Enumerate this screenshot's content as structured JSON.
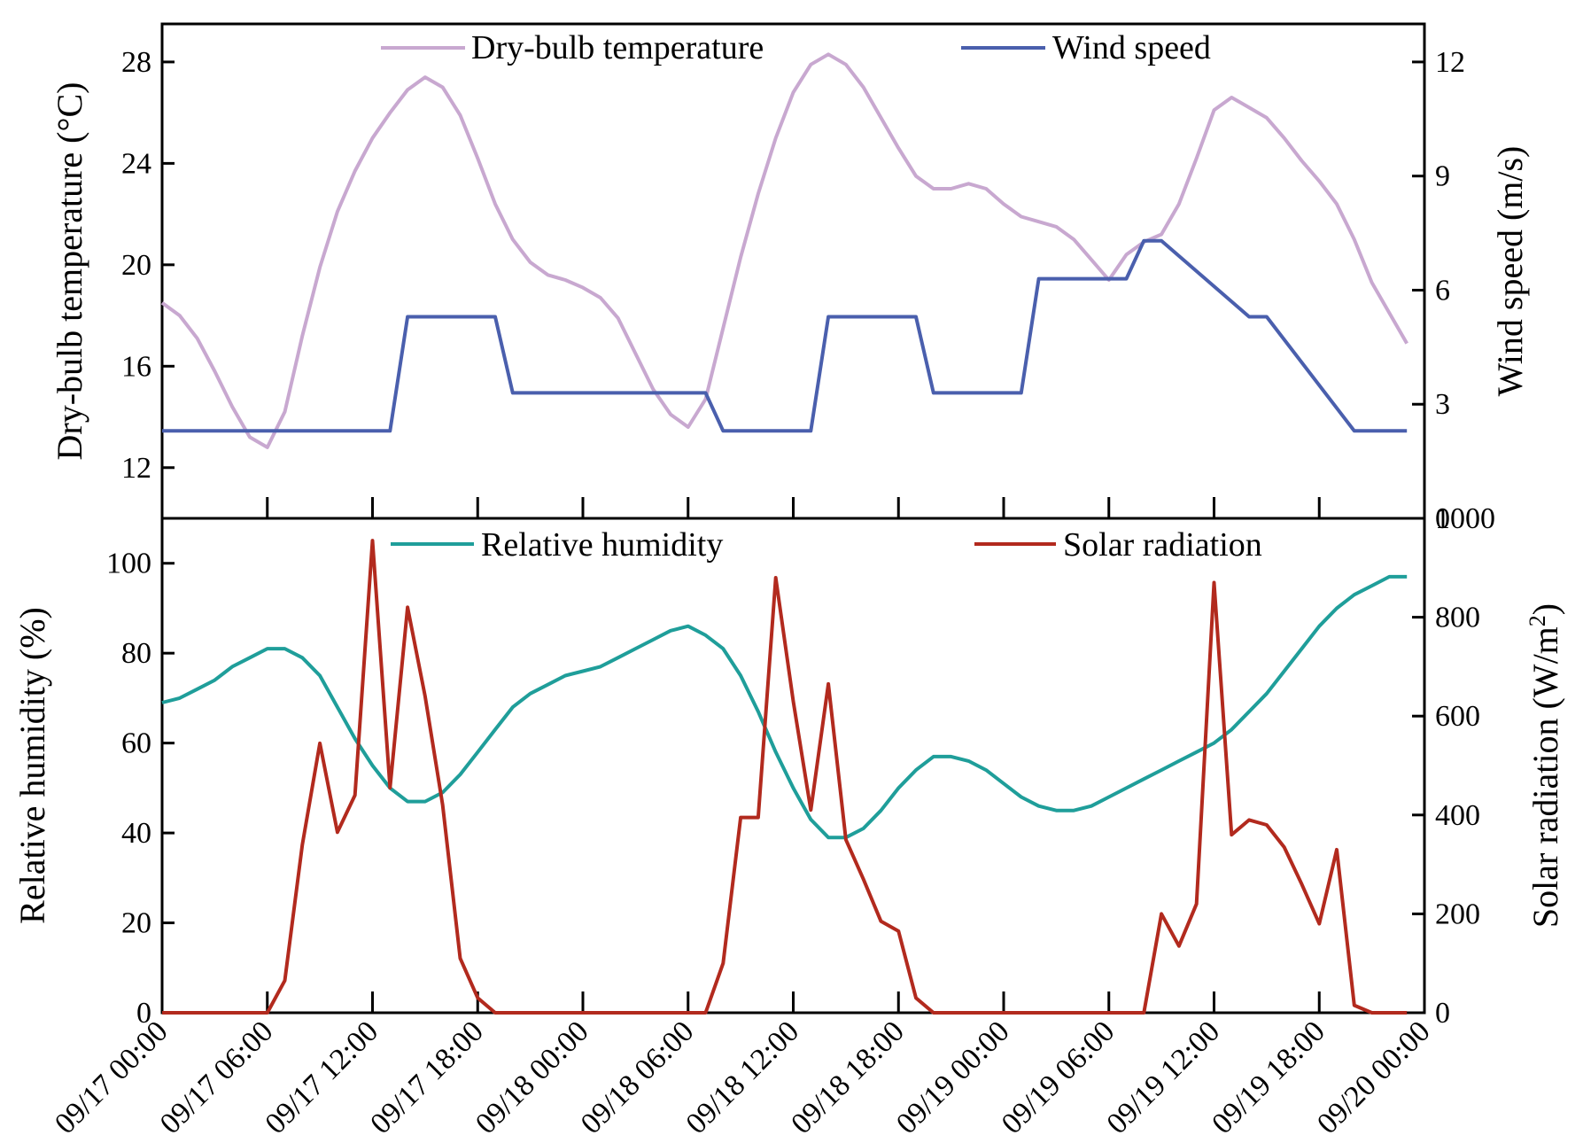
{
  "chart_data": [
    {
      "type": "line",
      "panel": "top",
      "x_range": [
        "09/17 00:00",
        "09/20 00:00"
      ],
      "y_left": {
        "label": "Dry-bulb temperature (°C)",
        "ylim": [
          10,
          29.5
        ],
        "ticks": [
          12,
          16,
          20,
          24,
          28
        ],
        "tick_labels": [
          "12",
          "16",
          "20",
          "24",
          "28"
        ]
      },
      "y_right": {
        "label": "Wind speed (m/s)",
        "ylim": [
          0,
          13
        ],
        "ticks": [
          0,
          3,
          6,
          9,
          12
        ],
        "tick_labels": [
          "0",
          "3",
          "6",
          "9",
          "12"
        ]
      },
      "grid": false,
      "legend_placement": "top",
      "series": [
        {
          "name": "Dry-bulb temperature",
          "axis": "left",
          "color": "#c8a8d0",
          "x_hours": [
            0,
            1,
            2,
            3,
            4,
            5,
            6,
            7,
            8,
            9,
            10,
            11,
            12,
            13,
            14,
            15,
            16,
            17,
            18,
            19,
            20,
            21,
            22,
            23,
            24,
            25,
            26,
            27,
            28,
            29,
            30,
            31,
            32,
            33,
            34,
            35,
            36,
            37,
            38,
            39,
            40,
            41,
            42,
            43,
            44,
            45,
            46,
            47,
            48,
            49,
            50,
            51,
            52,
            53,
            54,
            55,
            56,
            57,
            58,
            59,
            60,
            61,
            62,
            63,
            64,
            65,
            66,
            67,
            68,
            69,
            70,
            71
          ],
          "values": [
            18.5,
            18.0,
            17.1,
            15.8,
            14.4,
            13.2,
            12.8,
            14.2,
            17.2,
            19.9,
            22.1,
            23.7,
            25.0,
            26.0,
            26.9,
            27.4,
            27.0,
            25.9,
            24.2,
            22.4,
            21.0,
            20.1,
            19.6,
            19.4,
            19.1,
            18.7,
            17.9,
            16.5,
            15.1,
            14.1,
            13.6,
            14.7,
            17.5,
            20.3,
            22.8,
            25.0,
            26.8,
            27.9,
            28.3,
            27.9,
            27.0,
            25.8,
            24.6,
            23.5,
            23.0,
            23.0,
            23.2,
            23.0,
            22.4,
            21.9,
            21.7,
            21.5,
            21.0,
            20.2,
            19.4,
            20.4,
            20.9,
            21.2,
            22.4,
            24.2,
            26.1,
            26.6,
            26.2,
            25.8,
            25.0,
            24.1,
            23.3,
            22.4,
            21.0,
            19.3,
            18.1,
            16.9
          ]
        },
        {
          "name": "Wind speed",
          "axis": "right",
          "color": "#4a5fad",
          "x_hours": [
            0,
            13,
            14,
            19,
            20,
            31,
            32,
            37,
            38,
            43,
            44,
            49,
            50,
            55,
            56,
            57,
            62,
            63,
            68,
            69,
            71
          ],
          "values": [
            2.3,
            2.3,
            5.3,
            5.3,
            3.3,
            3.3,
            2.3,
            2.3,
            5.3,
            5.3,
            3.3,
            3.3,
            6.3,
            6.3,
            7.3,
            7.3,
            5.3,
            5.3,
            2.3,
            2.3,
            2.3
          ]
        }
      ]
    },
    {
      "type": "line",
      "panel": "bottom",
      "x_range": [
        "09/17 00:00",
        "09/20 00:00"
      ],
      "x_tick_hours": [
        0,
        6,
        12,
        18,
        24,
        30,
        36,
        42,
        48,
        54,
        60,
        66,
        72
      ],
      "x_tick_labels": [
        "09/17 00:00",
        "09/17 06:00",
        "09/17 12:00",
        "09/17 18:00",
        "09/18 00:00",
        "09/18 06:00",
        "09/18 12:00",
        "09/18 18:00",
        "09/19 00:00",
        "09/19 06:00",
        "09/19 12:00",
        "09/19 18:00",
        "09/20 00:00"
      ],
      "y_left": {
        "label": "Relative humidity (%)",
        "ylim": [
          0,
          110
        ],
        "ticks": [
          0,
          20,
          40,
          60,
          80,
          100
        ],
        "tick_labels": [
          "0",
          "20",
          "40",
          "60",
          "80",
          "100"
        ]
      },
      "y_right": {
        "label": "Solar radiation (W/m²)",
        "label_main": "Solar radiation (W/m",
        "label_sup": "2",
        "label_close": ")",
        "ylim": [
          0,
          1000
        ],
        "ticks": [
          0,
          200,
          400,
          600,
          800,
          1000
        ],
        "tick_labels": [
          "0",
          "200",
          "400",
          "600",
          "800",
          "1000"
        ]
      },
      "grid": false,
      "legend_placement": "top",
      "series": [
        {
          "name": "Relative humidity",
          "axis": "left",
          "color": "#1f9e9a",
          "x_hours": [
            0,
            1,
            2,
            3,
            4,
            5,
            6,
            7,
            8,
            9,
            10,
            11,
            12,
            13,
            14,
            15,
            16,
            17,
            18,
            19,
            20,
            21,
            22,
            23,
            24,
            25,
            26,
            27,
            28,
            29,
            30,
            31,
            32,
            33,
            34,
            35,
            36,
            37,
            38,
            39,
            40,
            41,
            42,
            43,
            44,
            45,
            46,
            47,
            48,
            49,
            50,
            51,
            52,
            53,
            54,
            55,
            56,
            57,
            58,
            59,
            60,
            61,
            62,
            63,
            64,
            65,
            66,
            67,
            68,
            69,
            70,
            71
          ],
          "values": [
            69,
            70,
            72,
            74,
            77,
            79,
            81,
            81,
            79,
            75,
            68,
            61,
            55,
            50,
            47,
            47,
            49,
            53,
            58,
            63,
            68,
            71,
            73,
            75,
            76,
            77,
            79,
            81,
            83,
            85,
            86,
            84,
            81,
            75,
            67,
            58,
            50,
            43,
            39,
            39,
            41,
            45,
            50,
            54,
            57,
            57,
            56,
            54,
            51,
            48,
            46,
            45,
            45,
            46,
            48,
            50,
            52,
            54,
            56,
            58,
            60,
            63,
            67,
            71,
            76,
            81,
            86,
            90,
            93,
            95,
            97,
            97
          ]
        },
        {
          "name": "Solar radiation",
          "axis": "right",
          "color": "#b22a1e",
          "x_hours": [
            0,
            6,
            7,
            8,
            9,
            10,
            11,
            12,
            13,
            14,
            15,
            16,
            17,
            18,
            19,
            20,
            30,
            31,
            32,
            33,
            34,
            35,
            36,
            37,
            38,
            39,
            40,
            41,
            42,
            43,
            44,
            45,
            55,
            56,
            57,
            58,
            59,
            60,
            61,
            62,
            63,
            64,
            65,
            66,
            67,
            68,
            69,
            70,
            71
          ],
          "values": [
            0,
            0,
            65,
            340,
            545,
            365,
            440,
            955,
            455,
            820,
            640,
            420,
            110,
            30,
            0,
            0,
            0,
            0,
            100,
            395,
            395,
            880,
            630,
            410,
            665,
            350,
            270,
            185,
            165,
            30,
            0,
            0,
            0,
            0,
            200,
            135,
            220,
            870,
            360,
            390,
            380,
            335,
            260,
            180,
            330,
            15,
            0,
            0,
            0
          ]
        }
      ]
    }
  ]
}
